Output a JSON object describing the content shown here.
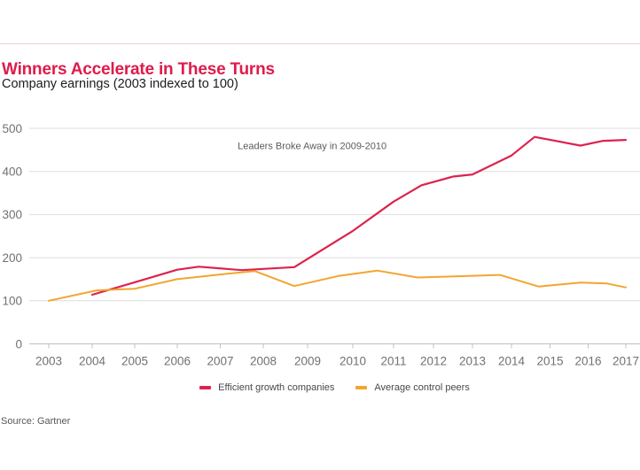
{
  "header": {
    "title": "Winners Accelerate in These Turns",
    "subtitle": "Company earnings (2003 indexed to 100)",
    "title_color": "#de1b4b",
    "subtitle_color": "#1c1c1e",
    "divider_color": "#f4cdd6"
  },
  "legend": {
    "items": [
      {
        "label": "Efficient growth companies",
        "color": "#dc234e"
      },
      {
        "label": "Average control peers",
        "color": "#f3a52f"
      }
    ]
  },
  "footer": {
    "source": "Source: Gartner"
  },
  "chart_data": {
    "type": "line",
    "title": "Winners Accelerate in These Turns",
    "subtitle": "Company earnings (2003 indexed to 100)",
    "xlabel": "",
    "ylabel": "",
    "xlim": [
      2003,
      2017
    ],
    "ylim": [
      0,
      500
    ],
    "x_ticks": [
      2003,
      2004,
      2005,
      2006,
      2007,
      2008,
      2009,
      2010,
      2011,
      2012,
      2013,
      2014,
      2015,
      2016,
      2017
    ],
    "y_ticks": [
      0,
      100,
      200,
      300,
      400,
      500
    ],
    "grid": "horizontal",
    "legend_position": "bottom-center",
    "annotation": {
      "text": "Leaders Broke Away in 2009-2010",
      "x": 2009.1,
      "y": 452,
      "color": "#5a5b5e"
    },
    "axis": {
      "grid_color": "#dcddde",
      "zero_line_color": "#c0c1c4",
      "tick_color": "#c0c1c4",
      "label_color": "#6f7174"
    },
    "series": [
      {
        "name": "Efficient growth companies",
        "color": "#dc234e",
        "stroke_width": 2.2,
        "points": [
          [
            2004,
            114
          ],
          [
            2005,
            143
          ],
          [
            2006,
            172
          ],
          [
            2006.5,
            179
          ],
          [
            2007.5,
            171
          ],
          [
            2008.7,
            178
          ],
          [
            2010,
            262
          ],
          [
            2011,
            330
          ],
          [
            2011.7,
            368
          ],
          [
            2012.5,
            388
          ],
          [
            2013,
            393
          ],
          [
            2014,
            437
          ],
          [
            2014.6,
            480
          ],
          [
            2015.8,
            460
          ],
          [
            2016.4,
            471
          ],
          [
            2017,
            473
          ]
        ]
      },
      {
        "name": "Average control peers",
        "color": "#f3a52f",
        "stroke_width": 2,
        "points": [
          [
            2003,
            100
          ],
          [
            2004.1,
            124
          ],
          [
            2005,
            128
          ],
          [
            2006,
            150
          ],
          [
            2007,
            161
          ],
          [
            2007.8,
            169
          ],
          [
            2008.7,
            134
          ],
          [
            2009.7,
            158
          ],
          [
            2010.6,
            170
          ],
          [
            2011.6,
            154
          ],
          [
            2013,
            158
          ],
          [
            2013.7,
            160
          ],
          [
            2014.7,
            133
          ],
          [
            2015.8,
            142
          ],
          [
            2016.5,
            140
          ],
          [
            2017,
            131
          ]
        ]
      }
    ]
  }
}
